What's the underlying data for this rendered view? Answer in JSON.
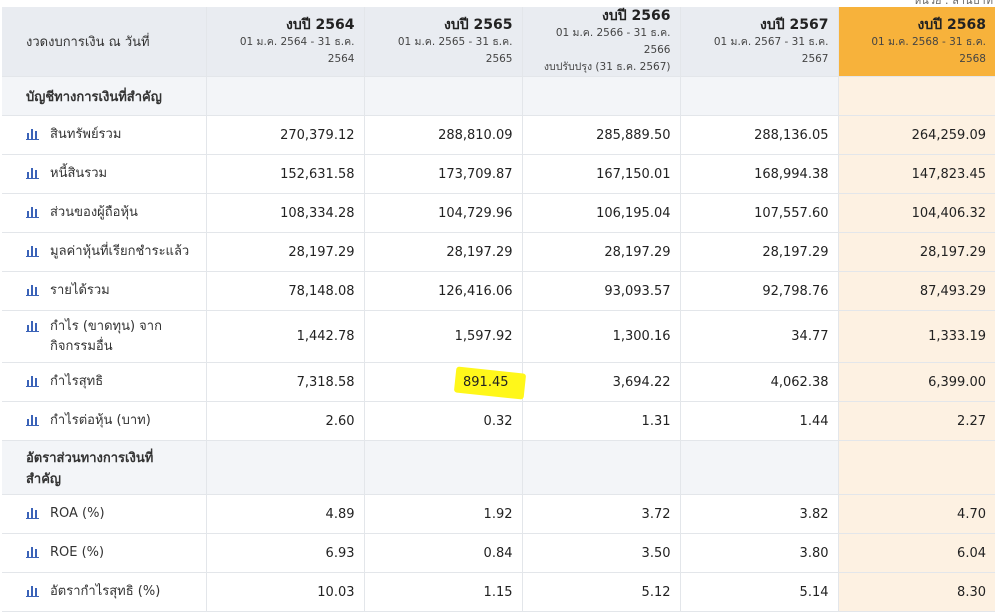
{
  "top_note": "หน่วย : ล้านบาท",
  "header": {
    "label": "งวดงบการเงิน ณ วันที่",
    "columns": [
      {
        "year": "งบปี 2564",
        "range": "01 ม.ค. 2564 - 31 ธ.ค. 2564",
        "note": ""
      },
      {
        "year": "งบปี 2565",
        "range": "01 ม.ค. 2565 - 31 ธ.ค. 2565",
        "note": ""
      },
      {
        "year": "งบปี 2566",
        "range": "01 ม.ค. 2566 - 31 ธ.ค. 2566",
        "note": "งบปรับปรุง (31 ธ.ค. 2567)"
      },
      {
        "year": "งบปี 2567",
        "range": "01 ม.ค. 2567 - 31 ธ.ค. 2567",
        "note": ""
      },
      {
        "year": "งบปี 2568",
        "range": "01 ม.ค. 2568 - 31 ธ.ค. 2568",
        "note": ""
      }
    ]
  },
  "sections": [
    {
      "title": "บัญชีทางการเงินที่สำคัญ",
      "rows": [
        {
          "label": "สินทรัพย์รวม",
          "values": [
            "270,379.12",
            "288,810.09",
            "285,889.50",
            "288,136.05",
            "264,259.09"
          ]
        },
        {
          "label": "หนี้สินรวม",
          "values": [
            "152,631.58",
            "173,709.87",
            "167,150.01",
            "168,994.38",
            "147,823.45"
          ]
        },
        {
          "label": "ส่วนของผู้ถือหุ้น",
          "values": [
            "108,334.28",
            "104,729.96",
            "106,195.04",
            "107,557.60",
            "104,406.32"
          ]
        },
        {
          "label": "มูลค่าหุ้นที่เรียกชำระแล้ว",
          "values": [
            "28,197.29",
            "28,197.29",
            "28,197.29",
            "28,197.29",
            "28,197.29"
          ]
        },
        {
          "label": "รายได้รวม",
          "values": [
            "78,148.08",
            "126,416.06",
            "93,093.57",
            "92,798.76",
            "87,493.29"
          ]
        },
        {
          "label": "กำไร (ขาดทุน) จาก",
          "label2": "กิจกรรมอื่น",
          "values": [
            "1,442.78",
            "1,597.92",
            "1,300.16",
            "34.77",
            "1,333.19"
          ]
        },
        {
          "label": "กำไรสุทธิ",
          "values": [
            "7,318.58",
            "891.45",
            "3,694.22",
            "4,062.38",
            "6,399.00"
          ]
        },
        {
          "label": "กำไรต่อหุ้น (บาท)",
          "values": [
            "2.60",
            "0.32",
            "1.31",
            "1.44",
            "2.27"
          ]
        }
      ]
    },
    {
      "title": "อัตราส่วนทางการเงินที่",
      "title2": "สำคัญ",
      "rows": [
        {
          "label": "ROA (%)",
          "values": [
            "4.89",
            "1.92",
            "3.72",
            "3.82",
            "4.70"
          ]
        },
        {
          "label": "ROE (%)",
          "values": [
            "6.93",
            "0.84",
            "3.50",
            "3.80",
            "6.04"
          ]
        },
        {
          "label": "อัตรากำไรสุทธิ (%)",
          "values": [
            "10.03",
            "1.15",
            "5.12",
            "5.14",
            "8.30"
          ]
        }
      ]
    }
  ],
  "colors": {
    "highlight_column": "#f7b23b",
    "highlight_column_body": "#fdf1e2",
    "header_bg": "#e9ecf1",
    "icon_blue": "#3b63b8",
    "marker_yellow": "#fff71a"
  },
  "icons": {
    "row_icon": "bar-chart-icon"
  }
}
